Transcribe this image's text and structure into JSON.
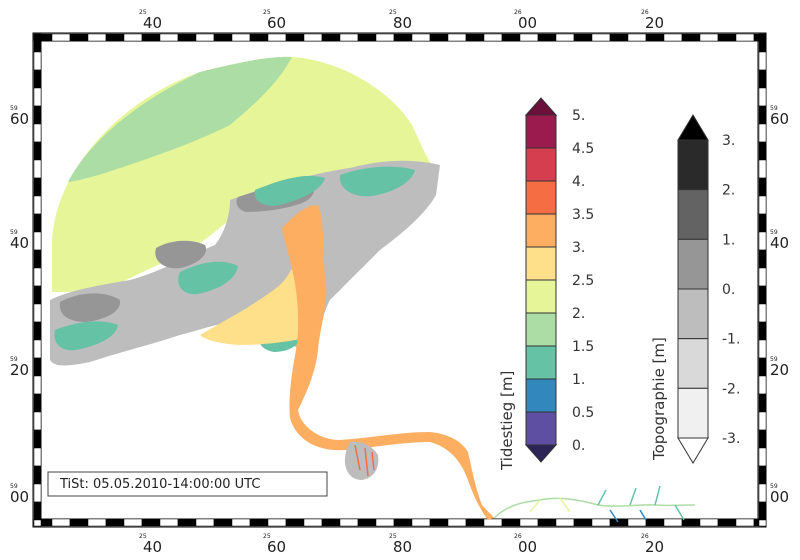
{
  "map": {
    "frame_ticks_top": [
      {
        "deg": "25",
        "min": "40"
      },
      {
        "deg": "25",
        "min": "60"
      },
      {
        "deg": "25",
        "min": "80"
      },
      {
        "deg": "26",
        "min": "00"
      },
      {
        "deg": "26",
        "min": "20"
      }
    ],
    "frame_ticks_bottom": [
      {
        "deg": "25",
        "min": "40"
      },
      {
        "deg": "25",
        "min": "60"
      },
      {
        "deg": "25",
        "min": "80"
      },
      {
        "deg": "26",
        "min": "00"
      },
      {
        "deg": "26",
        "min": "20"
      }
    ],
    "frame_ticks_left": [
      {
        "deg": "59",
        "min": "60"
      },
      {
        "deg": "59",
        "min": "40"
      },
      {
        "deg": "59",
        "min": "20"
      },
      {
        "deg": "59",
        "min": "00"
      }
    ],
    "frame_ticks_right": [
      {
        "deg": "59",
        "min": "60"
      },
      {
        "deg": "59",
        "min": "40"
      },
      {
        "deg": "59",
        "min": "20"
      },
      {
        "deg": "59",
        "min": "00"
      }
    ],
    "timestamp": "TiSt: 05.05.2010-14:00:00 UTC"
  },
  "colorbar_tidestieg": {
    "title": "Tidestieg  [m]",
    "labels": [
      "5.",
      "4.5",
      "4.",
      "3.5",
      "3.",
      "2.5",
      "2.",
      "1.5",
      "1.",
      "0.5",
      "0."
    ],
    "colors": [
      "#9b1b4f",
      "#d53e4f",
      "#f46d43",
      "#fdae61",
      "#fee08b",
      "#e6f598",
      "#abdda4",
      "#66c2a5",
      "#3288bd",
      "#5e4fa2"
    ],
    "over_color": "#6b0f3b",
    "under_color": "#2d2457"
  },
  "colorbar_topographie": {
    "title": "Topographie  [m]",
    "labels": [
      "3.",
      "2.",
      "1.",
      "0.",
      "-1.",
      "-2.",
      "-3."
    ],
    "colors": [
      "#2a2a2a",
      "#636363",
      "#969696",
      "#bdbdbd",
      "#d9d9d9",
      "#f0f0f0"
    ],
    "over_color": "#000000",
    "under_color": "#ffffff"
  }
}
